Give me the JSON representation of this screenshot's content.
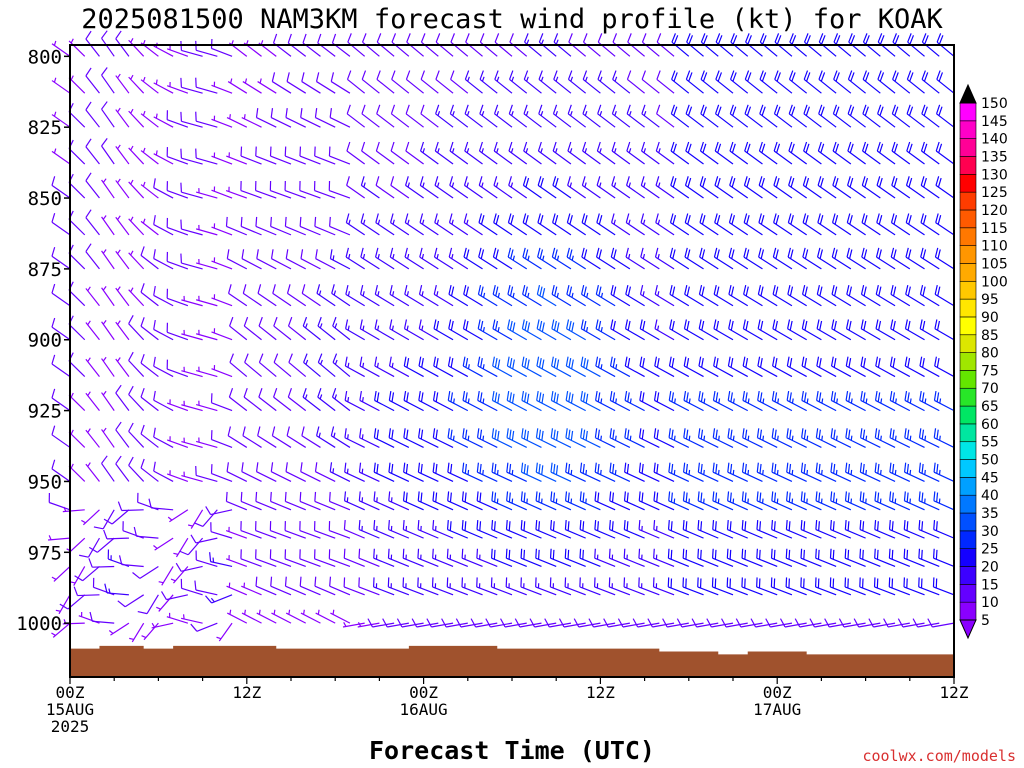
{
  "title": "2025081500 NAM3KM forecast wind profile (kt) for KOAK",
  "credit": "coolwx.com/models",
  "ground_color": "#a0522d",
  "chart_data": {
    "type": "wind-barbs",
    "title": "2025081500 NAM3KM forecast wind profile (kt) for KOAK",
    "xlabel": "Forecast Time (UTC)",
    "ylabel": "",
    "units": "kt",
    "x_range_hours": [
      0,
      60
    ],
    "y_range_hpa": [
      796,
      1019
    ],
    "y_inverted": true,
    "x_step_hours": 1,
    "y_ticks": [
      800,
      825,
      850,
      875,
      900,
      925,
      950,
      975,
      1000
    ],
    "x_ticks": [
      {
        "hour": 0,
        "lines": [
          "00Z",
          "15AUG",
          "2025"
        ]
      },
      {
        "hour": 12,
        "lines": [
          "12Z"
        ]
      },
      {
        "hour": 24,
        "lines": [
          "00Z",
          "16AUG"
        ]
      },
      {
        "hour": 36,
        "lines": [
          "12Z"
        ]
      },
      {
        "hour": 48,
        "lines": [
          "00Z",
          "17AUG"
        ]
      },
      {
        "hour": 60,
        "lines": [
          "12Z"
        ]
      }
    ],
    "levels_hpa": [
      800,
      813,
      825,
      838,
      850,
      863,
      875,
      888,
      900,
      913,
      925,
      938,
      950,
      960,
      970,
      980,
      990,
      1000
    ],
    "surface_pressure_hpa": [
      [
        0,
        1009
      ],
      [
        2,
        1008
      ],
      [
        5,
        1009
      ],
      [
        7,
        1008
      ],
      [
        14,
        1009
      ],
      [
        21,
        1009
      ],
      [
        23,
        1008
      ],
      [
        29,
        1009
      ],
      [
        38,
        1009
      ],
      [
        40,
        1010
      ],
      [
        44,
        1011
      ],
      [
        46,
        1010
      ],
      [
        50,
        1011
      ],
      [
        54,
        1011
      ],
      [
        60,
        1011
      ]
    ],
    "wind_field_model": {
      "note": "barb speed (kt) and direction (deg) by forecast hour; wind from the west-northwest, strongest 25-35 kt near 900-940 hPa around hours 30-36",
      "speed_kt_range": [
        5,
        35
      ],
      "direction_deg_range": [
        240,
        340
      ]
    },
    "colorbar": {
      "labels": [
        5,
        10,
        15,
        20,
        25,
        30,
        35,
        40,
        45,
        50,
        55,
        60,
        65,
        70,
        75,
        80,
        85,
        90,
        95,
        100,
        105,
        110,
        115,
        120,
        125,
        130,
        135,
        140,
        145,
        150
      ],
      "colors": [
        "#8a00ff",
        "#6400ff",
        "#3c00ff",
        "#1400ff",
        "#0028ff",
        "#0050ff",
        "#0078ff",
        "#00a0ff",
        "#00c8ff",
        "#00e6e6",
        "#00e6a0",
        "#00e664",
        "#28e628",
        "#64e600",
        "#a0e600",
        "#dce600",
        "#ffff00",
        "#ffe600",
        "#ffc800",
        "#ffaa00",
        "#ff9600",
        "#ff7800",
        "#ff5a00",
        "#ff3c00",
        "#ff0000",
        "#ff0050",
        "#ff0096",
        "#ff00c8",
        "#ff00ff",
        "#000000"
      ]
    }
  }
}
